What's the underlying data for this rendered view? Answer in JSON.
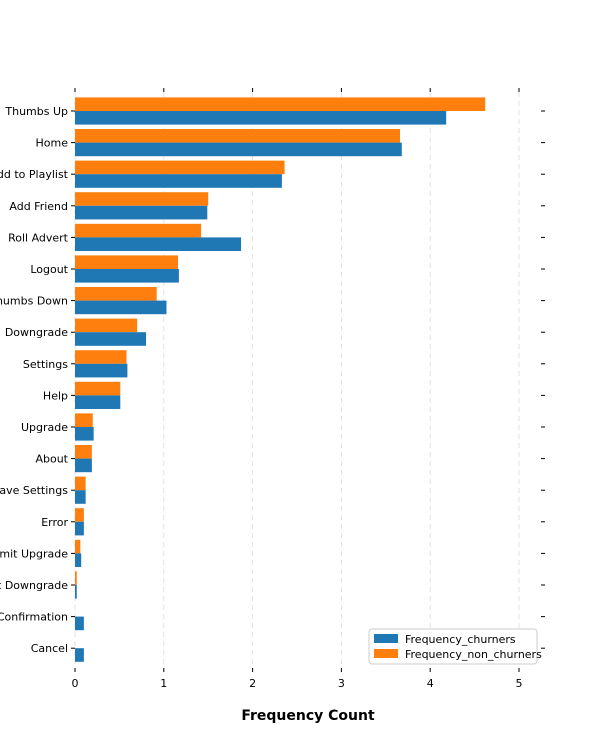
{
  "chart_data": {
    "type": "bar",
    "orientation": "horizontal",
    "categories": [
      "Thumbs Up",
      "Home",
      "Add to Playlist",
      "Add Friend",
      "Roll Advert",
      "Logout",
      "Thumbs Down",
      "Downgrade",
      "Settings",
      "Help",
      "Upgrade",
      "About",
      "Save Settings",
      "Error",
      "Submit Upgrade",
      "Submit Downgrade",
      "Cancellation Confirmation",
      "Cancel"
    ],
    "series": [
      {
        "name": "Frequency_churners",
        "color": "#1f77b4",
        "values": [
          4.18,
          3.68,
          2.33,
          1.49,
          1.87,
          1.17,
          1.03,
          0.8,
          0.59,
          0.51,
          0.21,
          0.19,
          0.12,
          0.1,
          0.07,
          0.02,
          0.1,
          0.1
        ]
      },
      {
        "name": "Frequency_non_churners",
        "color": "#ff7f0e",
        "values": [
          4.62,
          3.66,
          2.36,
          1.5,
          1.42,
          1.16,
          0.92,
          0.7,
          0.58,
          0.51,
          0.2,
          0.19,
          0.12,
          0.1,
          0.06,
          0.02,
          0,
          0
        ]
      }
    ],
    "xlabel": "Frequency Count",
    "ylabel": "",
    "xlim": [
      0,
      5.3
    ],
    "xticks": [
      0,
      1,
      2,
      3,
      4,
      5
    ],
    "grid": "vertical dashed",
    "legend_position": "bottom-right"
  }
}
